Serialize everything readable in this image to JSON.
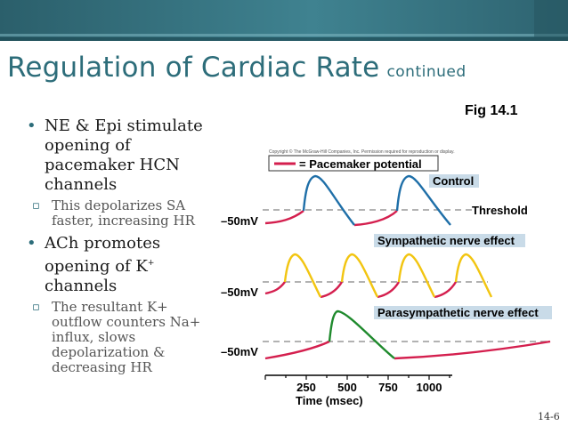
{
  "title": {
    "main": "Regulation of Cardiac Rate",
    "continued": "continued"
  },
  "figure_ref": "Fig 14.1",
  "bullets": [
    {
      "text": "NE & Epi stimulate opening of pacemaker HCN channels",
      "sub": "This depolarizes SA faster, increasing HR"
    },
    {
      "text": "ACh promotes opening of K",
      "superscript": "+",
      "text_after": " channels",
      "sub": "The resultant K+ outflow counters Na+ influx, slows depolarization & decreasing HR"
    }
  ],
  "diagram": {
    "copyright": "Copyright © The McGraw-Hill Companies, Inc. Permission required for reproduction or display.",
    "legend": "= Pacemaker potential",
    "labels": {
      "control": "Control",
      "threshold": "Threshold",
      "sympathetic": "Sympathetic nerve effect",
      "parasympathetic": "Parasympathetic nerve effect",
      "mv1": "–50mV",
      "mv2": "–50mV",
      "mv3": "–50mV"
    },
    "x_ticks": [
      "250",
      "500",
      "750",
      "1000"
    ],
    "x_axis_label": "Time (msec)",
    "colors": {
      "pacemaker": "#d41f4e",
      "control": "#1f6fa8",
      "sympathetic": "#f2c511",
      "parasympathetic": "#1f8a2d",
      "label_box": "#c9dbe8",
      "title": "#2d6d7a"
    }
  },
  "page_number": "14-6"
}
